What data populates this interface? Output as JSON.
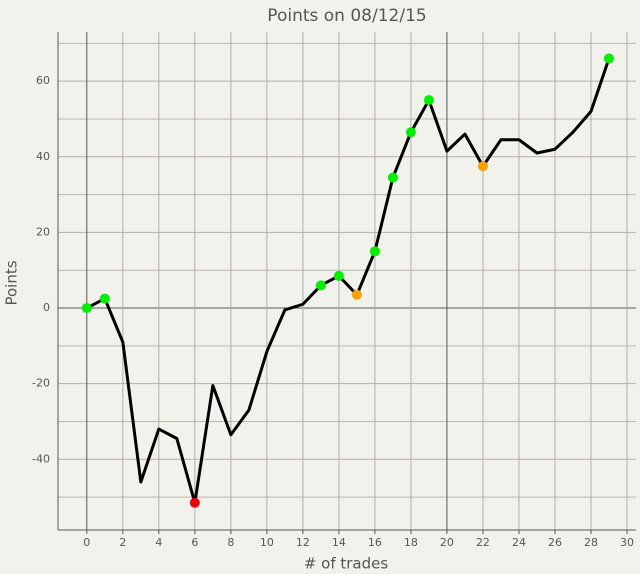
{
  "chart_data": {
    "type": "line",
    "title": "Points on 08/12/15",
    "x_label": "# of trades",
    "y_label": "Points",
    "x": [
      0,
      1,
      2,
      3,
      4,
      5,
      6,
      7,
      8,
      9,
      10,
      11,
      12,
      13,
      14,
      15,
      16,
      17,
      18,
      19,
      20,
      21,
      22,
      23,
      24,
      25,
      26,
      27,
      28,
      29
    ],
    "series": [
      {
        "color": "#000000",
        "values": [
          0,
          2.5,
          -9,
          -46,
          -32,
          -34.5,
          -51.5,
          -20.5,
          -33.5,
          -27,
          -11.5,
          -0.5,
          1,
          6,
          8.5,
          3.5,
          15,
          34.5,
          46.5,
          55,
          41.5,
          46,
          37.5,
          44.5,
          44.5,
          41,
          42,
          46.5,
          52,
          66
        ],
        "marker_colors": [
          "#00ee00",
          "#00ee00",
          null,
          null,
          null,
          null,
          "#ee0000",
          null,
          null,
          null,
          null,
          null,
          null,
          "#00ee00",
          "#00ee00",
          "#f5a000",
          "#00ee00",
          "#00ee00",
          "#00ee00",
          "#00ee00",
          null,
          null,
          "#f5a000",
          null,
          null,
          null,
          null,
          null,
          null,
          "#00ee00"
        ]
      }
    ],
    "xlim": [
      -1.6,
      30.5
    ],
    "ylim": [
      -58.7,
      73
    ],
    "xticks": [
      0,
      2,
      4,
      6,
      8,
      10,
      12,
      14,
      16,
      18,
      20,
      22,
      24,
      26,
      28,
      30
    ],
    "yticks": [
      -40,
      -20,
      0,
      20,
      40,
      60
    ],
    "minor_yticks": [
      -50,
      -30,
      -10,
      10,
      30,
      50,
      70
    ],
    "grid": true
  }
}
